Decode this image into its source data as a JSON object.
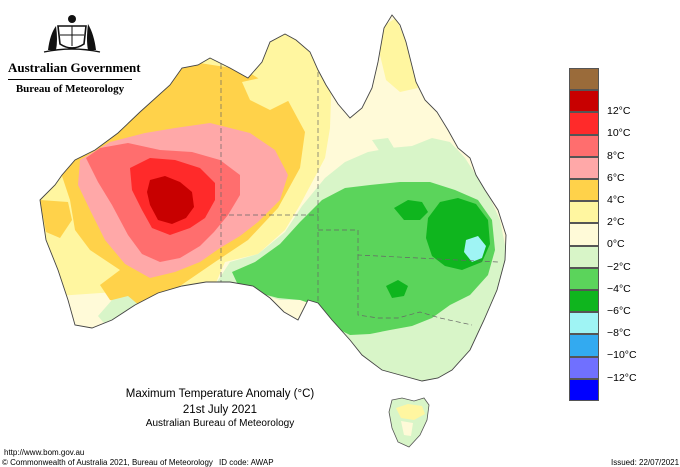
{
  "header": {
    "government": "Australian Government",
    "bureau": "Bureau of Meteorology"
  },
  "map": {
    "title": "Maximum Temperature Anomaly (°C)",
    "date": "21st July 2021",
    "credit": "Australian Bureau of Meteorology"
  },
  "legend": {
    "items": [
      {
        "label": "",
        "color": "#9a6b3a"
      },
      {
        "label": "12°C",
        "color": "#c80000"
      },
      {
        "label": "10°C",
        "color": "#ff2a2a"
      },
      {
        "label": "8°C",
        "color": "#ff6e6e"
      },
      {
        "label": "6°C",
        "color": "#ffa8a8"
      },
      {
        "label": "4°C",
        "color": "#ffd24a"
      },
      {
        "label": "2°C",
        "color": "#fff6a0"
      },
      {
        "label": "0°C",
        "color": "#fffad8"
      },
      {
        "label": "−2°C",
        "color": "#d8f5c8"
      },
      {
        "label": "−4°C",
        "color": "#5bd45b"
      },
      {
        "label": "−6°C",
        "color": "#0fb51e"
      },
      {
        "label": "−8°C",
        "color": "#9ff4f4"
      },
      {
        "label": "−10°C",
        "color": "#33aaf0"
      },
      {
        "label": "−12°C",
        "color": "#7070ff"
      },
      {
        "label": "",
        "color": "#0000ff"
      }
    ]
  },
  "footer": {
    "url": "http://www.bom.gov.au",
    "copyright": "© Commonwealth of Australia 2021, Bureau of Meteorology",
    "id_code": "ID code: AWAP",
    "issued": "Issued: 22/07/2021"
  }
}
